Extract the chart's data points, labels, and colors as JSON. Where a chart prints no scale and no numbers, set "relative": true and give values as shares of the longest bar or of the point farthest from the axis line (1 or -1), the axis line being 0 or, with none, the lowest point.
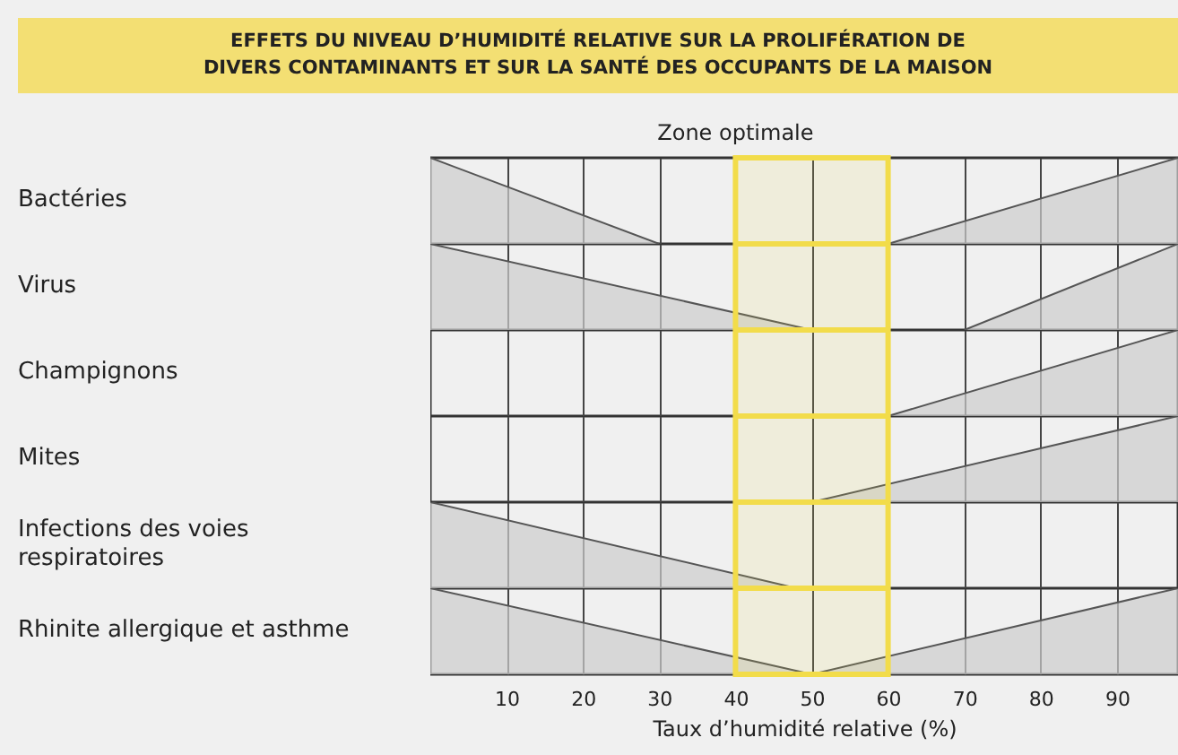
{
  "chart_data": [
    {
      "type": "area",
      "title": "EFFETS DU NIVEAU D’HUMIDITÉ RELATIVE SUR LA PROLIFÉRATION DE DIVERS CONTAMINANTS ET SUR LA SANTÉ DES OCCUPANTS DE LA MAISON",
      "ylabel": "Bactéries",
      "relative": true,
      "xlim": [
        0,
        98
      ],
      "xticks": [
        10,
        20,
        30,
        40,
        50,
        60,
        70,
        80,
        90
      ],
      "grid": "x",
      "tick_labels": false,
      "series": [
        {
          "color": "#cccccc",
          "x": [
            0,
            30
          ],
          "values": [
            1,
            0
          ]
        },
        {
          "color": "#cccccc",
          "x": [
            60,
            98
          ],
          "values": [
            0,
            1
          ]
        }
      ],
      "bands": [
        {
          "axis": "x",
          "from": 40,
          "to": 60,
          "label": "Zone optimale",
          "color": "#f2dc4a"
        }
      ]
    },
    {
      "type": "area",
      "ylabel": "Virus",
      "relative": true,
      "xlim": [
        0,
        98
      ],
      "xticks": [
        10,
        20,
        30,
        40,
        50,
        60,
        70,
        80,
        90
      ],
      "grid": "x",
      "tick_labels": false,
      "series": [
        {
          "color": "#cccccc",
          "x": [
            0,
            50
          ],
          "values": [
            1,
            0
          ]
        },
        {
          "color": "#cccccc",
          "x": [
            70,
            98
          ],
          "values": [
            0,
            1
          ]
        }
      ],
      "bands": [
        {
          "axis": "x",
          "from": 40,
          "to": 60,
          "color": "#f2dc4a"
        }
      ]
    },
    {
      "type": "area",
      "ylabel": "Champignons",
      "relative": true,
      "xlim": [
        0,
        98
      ],
      "xticks": [
        10,
        20,
        30,
        40,
        50,
        60,
        70,
        80,
        90
      ],
      "grid": "x",
      "tick_labels": false,
      "series": [
        {
          "color": "#cccccc",
          "x": [
            60,
            98
          ],
          "values": [
            0,
            1
          ]
        }
      ],
      "bands": [
        {
          "axis": "x",
          "from": 40,
          "to": 60,
          "color": "#f2dc4a"
        }
      ]
    },
    {
      "type": "area",
      "ylabel": "Mites",
      "relative": true,
      "xlim": [
        0,
        98
      ],
      "xticks": [
        10,
        20,
        30,
        40,
        50,
        60,
        70,
        80,
        90
      ],
      "grid": "x",
      "tick_labels": false,
      "series": [
        {
          "color": "#cccccc",
          "x": [
            50,
            98
          ],
          "values": [
            0,
            1
          ]
        }
      ],
      "bands": [
        {
          "axis": "x",
          "from": 40,
          "to": 60,
          "color": "#f2dc4a"
        }
      ]
    },
    {
      "type": "area",
      "ylabel": "Infections des voies respiratoires",
      "relative": true,
      "xlim": [
        0,
        98
      ],
      "xticks": [
        10,
        20,
        30,
        40,
        50,
        60,
        70,
        80,
        90
      ],
      "grid": "x",
      "tick_labels": false,
      "series": [
        {
          "color": "#cccccc",
          "x": [
            0,
            48
          ],
          "values": [
            1,
            0
          ]
        }
      ],
      "bands": [
        {
          "axis": "x",
          "from": 40,
          "to": 60,
          "color": "#f2dc4a"
        }
      ]
    },
    {
      "type": "area",
      "ylabel": "Rhinite allergique et asthme",
      "xlabel": "Taux d’humidité relative (%)",
      "relative": true,
      "xlim": [
        0,
        98
      ],
      "xticks": [
        10,
        20,
        30,
        40,
        50,
        60,
        70,
        80,
        90
      ],
      "grid": "x",
      "tick_labels": "x",
      "series": [
        {
          "color": "#cccccc",
          "x": [
            0,
            50,
            98
          ],
          "values": [
            1,
            0,
            1
          ]
        }
      ],
      "bands": [
        {
          "axis": "x",
          "from": 40,
          "to": 60,
          "color": "#f2dc4a"
        }
      ]
    }
  ]
}
